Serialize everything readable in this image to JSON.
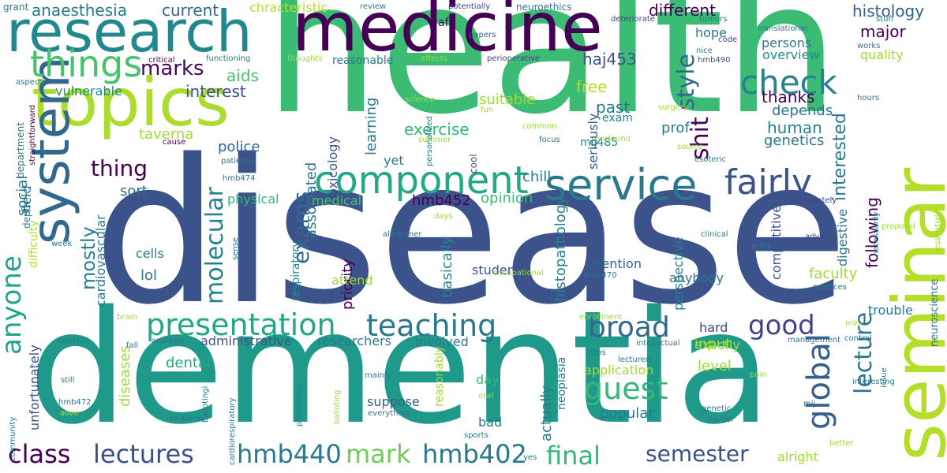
{
  "words": [
    {
      "text": "health"
    },
    {
      "text": "disease"
    },
    {
      "text": "dementia"
    },
    {
      "text": "medicine"
    },
    {
      "text": "seminar"
    },
    {
      "text": "research"
    },
    {
      "text": "topics"
    },
    {
      "text": "system"
    },
    {
      "text": "service"
    },
    {
      "text": "things"
    },
    {
      "text": "component"
    },
    {
      "text": "check"
    },
    {
      "text": "fairly"
    },
    {
      "text": "presentation"
    },
    {
      "text": "teaching"
    },
    {
      "text": "global"
    },
    {
      "text": "guest"
    },
    {
      "text": "broad"
    },
    {
      "text": "class"
    },
    {
      "text": "lectures"
    },
    {
      "text": "hmb440"
    },
    {
      "text": "mark"
    },
    {
      "text": "hmb402"
    },
    {
      "text": "final"
    },
    {
      "text": "semester"
    },
    {
      "text": "good"
    },
    {
      "text": "lecture"
    },
    {
      "text": "anyone"
    },
    {
      "text": "marks"
    },
    {
      "text": "thing"
    },
    {
      "text": "style"
    },
    {
      "text": "molecular"
    },
    {
      "text": "exams"
    },
    {
      "text": "mostly"
    },
    {
      "text": "shit"
    },
    {
      "text": "interested"
    },
    {
      "text": "anaesthesia"
    },
    {
      "text": "current"
    },
    {
      "text": "different"
    },
    {
      "text": "histology"
    },
    {
      "text": "major"
    },
    {
      "text": "haj453"
    },
    {
      "text": "aids"
    },
    {
      "text": "interest"
    },
    {
      "text": "free"
    },
    {
      "text": "past"
    },
    {
      "text": "thanks"
    },
    {
      "text": "depends"
    },
    {
      "text": "human"
    },
    {
      "text": "genetics"
    },
    {
      "text": "following"
    },
    {
      "text": "exercise"
    },
    {
      "text": "associated"
    },
    {
      "text": "learning"
    },
    {
      "text": "toxicology"
    },
    {
      "text": "prof"
    },
    {
      "text": "mij485"
    },
    {
      "text": "seriously"
    },
    {
      "text": "hmb452"
    },
    {
      "text": "opinion"
    },
    {
      "text": "sort"
    },
    {
      "text": "social"
    },
    {
      "text": "police"
    },
    {
      "text": "taverna"
    },
    {
      "text": "chill"
    },
    {
      "text": "yet"
    },
    {
      "text": "suitable"
    },
    {
      "text": "overview"
    },
    {
      "text": "quality"
    },
    {
      "text": "hope"
    },
    {
      "text": "persons"
    },
    {
      "text": "vulnerable"
    },
    {
      "text": "cardiovascular"
    },
    {
      "text": "lol"
    },
    {
      "text": "cells"
    },
    {
      "text": "physical"
    },
    {
      "text": "medical"
    },
    {
      "text": "priority"
    },
    {
      "text": "basically"
    },
    {
      "text": "histopathology"
    },
    {
      "text": "perspective"
    },
    {
      "text": "competitive"
    },
    {
      "text": "faculty"
    },
    {
      "text": "attention"
    },
    {
      "text": "anybody"
    },
    {
      "text": "students"
    },
    {
      "text": "attend"
    },
    {
      "text": "respiratory"
    },
    {
      "text": "administrative"
    },
    {
      "text": "researchers"
    },
    {
      "text": "involved"
    },
    {
      "text": "diseases"
    },
    {
      "text": "dental"
    },
    {
      "text": "input"
    },
    {
      "text": "hard"
    },
    {
      "text": "level"
    },
    {
      "text": "exactly"
    },
    {
      "text": "application"
    },
    {
      "text": "popular"
    },
    {
      "text": "day"
    },
    {
      "text": "suppose"
    },
    {
      "text": "actually"
    },
    {
      "text": "bad"
    },
    {
      "text": "reasonably"
    },
    {
      "text": "neoplasia"
    },
    {
      "text": "unfortunately"
    },
    {
      "text": "alright"
    },
    {
      "text": "trouble"
    },
    {
      "text": "neuroscience"
    },
    {
      "text": "digestive"
    },
    {
      "text": "stem"
    },
    {
      "text": "grant"
    },
    {
      "text": "chracteristic"
    },
    {
      "text": "review"
    },
    {
      "text": "potentially"
    },
    {
      "text": "neuroethics"
    },
    {
      "text": "deteriorate"
    },
    {
      "text": "tumors"
    },
    {
      "text": "translational"
    },
    {
      "text": "stuff"
    },
    {
      "text": "af"
    },
    {
      "text": "papers"
    },
    {
      "text": "code"
    },
    {
      "text": "nice"
    },
    {
      "text": "hmb490"
    },
    {
      "text": "works"
    },
    {
      "text": "critical"
    },
    {
      "text": "functioning"
    },
    {
      "text": "thoughts"
    },
    {
      "text": "effects"
    },
    {
      "text": "perioperative"
    },
    {
      "text": "reasonable"
    },
    {
      "text": "aspects"
    },
    {
      "text": "department"
    },
    {
      "text": "straightforward"
    },
    {
      "text": "science"
    },
    {
      "text": "fun"
    },
    {
      "text": "exam"
    },
    {
      "text": "surgery"
    },
    {
      "text": "hours"
    },
    {
      "text": "common"
    },
    {
      "text": "focus"
    },
    {
      "text": "profound"
    },
    {
      "text": "source"
    },
    {
      "text": "esoteric"
    },
    {
      "text": "cause"
    },
    {
      "text": "patients"
    },
    {
      "text": "field"
    },
    {
      "text": "depth"
    },
    {
      "text": "summer"
    },
    {
      "text": "cool"
    },
    {
      "text": "personalized"
    },
    {
      "text": "hmb474"
    },
    {
      "text": "days"
    },
    {
      "text": "week"
    },
    {
      "text": "difficulty"
    },
    {
      "text": "sense"
    },
    {
      "text": "alzheimer"
    },
    {
      "text": "clinical"
    },
    {
      "text": "tests"
    },
    {
      "text": "adequately"
    },
    {
      "text": "advice"
    },
    {
      "text": "necessarily"
    },
    {
      "text": "essential"
    },
    {
      "text": "proposal"
    },
    {
      "text": "occupational"
    },
    {
      "text": "hmb470"
    },
    {
      "text": "sciences"
    },
    {
      "text": "brain"
    },
    {
      "text": "enrollment"
    },
    {
      "text": "mini"
    },
    {
      "text": "control"
    },
    {
      "text": "management"
    },
    {
      "text": "analysis"
    },
    {
      "text": "content"
    },
    {
      "text": "fall"
    },
    {
      "text": "intellectual"
    },
    {
      "text": "https"
    },
    {
      "text": "lecturers"
    },
    {
      "text": "pain"
    },
    {
      "text": "issue"
    },
    {
      "text": "still"
    },
    {
      "text": "midterm"
    },
    {
      "text": "ballotingi"
    },
    {
      "text": "physiology"
    },
    {
      "text": "balloting"
    },
    {
      "text": "mainly"
    },
    {
      "text": "oral"
    },
    {
      "text": "sports"
    },
    {
      "text": "everything"
    },
    {
      "text": "genetic"
    },
    {
      "text": "harder"
    },
    {
      "text": "mij"
    },
    {
      "text": "interesting"
    },
    {
      "text": "better"
    },
    {
      "text": "community"
    },
    {
      "text": "hmb472"
    },
    {
      "text": "alive"
    },
    {
      "text": "cardiorespiratory"
    },
    {
      "text": "yes"
    }
  ]
}
